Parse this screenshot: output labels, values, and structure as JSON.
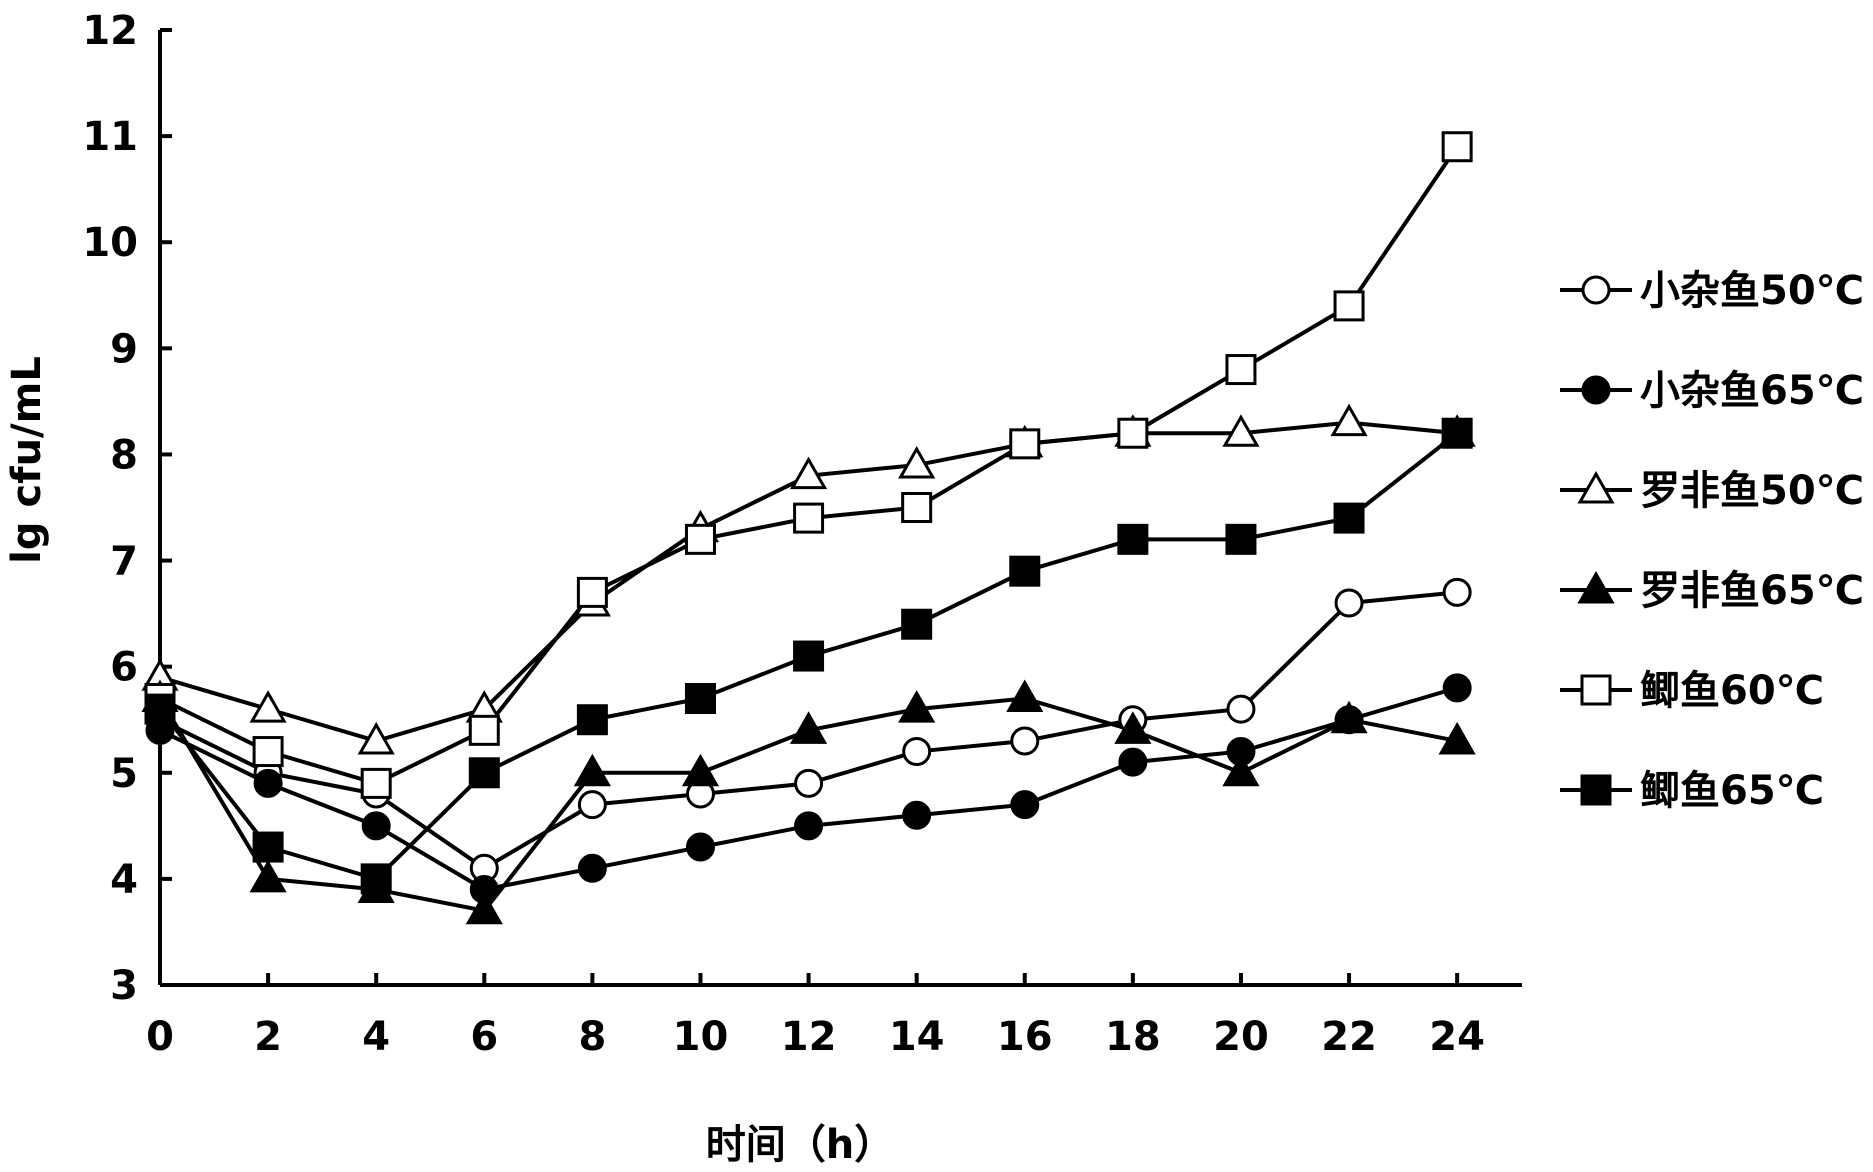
{
  "chart_data": {
    "type": "line",
    "title": "",
    "xlabel": "时间（h）",
    "ylabel": "lg cfu/mL",
    "x": [
      0,
      2,
      4,
      6,
      8,
      10,
      12,
      14,
      16,
      18,
      20,
      22,
      24
    ],
    "xticks": [
      "0",
      "2",
      "4",
      "6",
      "8",
      "10",
      "12",
      "14",
      "16",
      "18",
      "20",
      "22",
      "24"
    ],
    "yticks": [
      "3",
      "4",
      "5",
      "6",
      "7",
      "8",
      "9",
      "10",
      "11",
      "12"
    ],
    "xlim": [
      0,
      25.2
    ],
    "ylim": [
      3,
      12
    ],
    "grid": false,
    "legend_position": "right",
    "series": [
      {
        "name": "小杂鱼50℃",
        "marker": "circle-open",
        "values": [
          5.5,
          5.0,
          4.8,
          4.1,
          4.7,
          4.8,
          4.9,
          5.2,
          5.3,
          5.5,
          5.6,
          6.6,
          6.7
        ]
      },
      {
        "name": "小杂鱼65℃",
        "marker": "circle-filled",
        "values": [
          5.4,
          4.9,
          4.5,
          3.9,
          4.1,
          4.3,
          4.5,
          4.6,
          4.7,
          5.1,
          5.2,
          5.5,
          5.8
        ]
      },
      {
        "name": "罗非鱼50℃",
        "marker": "triangle-open",
        "values": [
          5.9,
          5.6,
          5.3,
          5.6,
          6.6,
          7.3,
          7.8,
          7.9,
          8.1,
          8.2,
          8.2,
          8.3,
          8.2
        ]
      },
      {
        "name": "罗非鱼65℃",
        "marker": "triangle-filled",
        "values": [
          5.7,
          4.0,
          3.9,
          3.7,
          5.0,
          5.0,
          5.4,
          5.6,
          5.7,
          5.4,
          5.0,
          5.5,
          5.3
        ]
      },
      {
        "name": "鲫鱼60℃",
        "marker": "square-open",
        "values": [
          5.7,
          5.2,
          4.9,
          5.4,
          6.7,
          7.2,
          7.4,
          7.5,
          8.1,
          8.2,
          8.8,
          9.4,
          10.9
        ]
      },
      {
        "name": "鲫鱼65℃",
        "marker": "square-filled",
        "values": [
          5.6,
          4.3,
          4.0,
          5.0,
          5.5,
          5.7,
          6.1,
          6.4,
          6.9,
          7.2,
          7.2,
          7.4,
          8.2
        ]
      }
    ]
  }
}
